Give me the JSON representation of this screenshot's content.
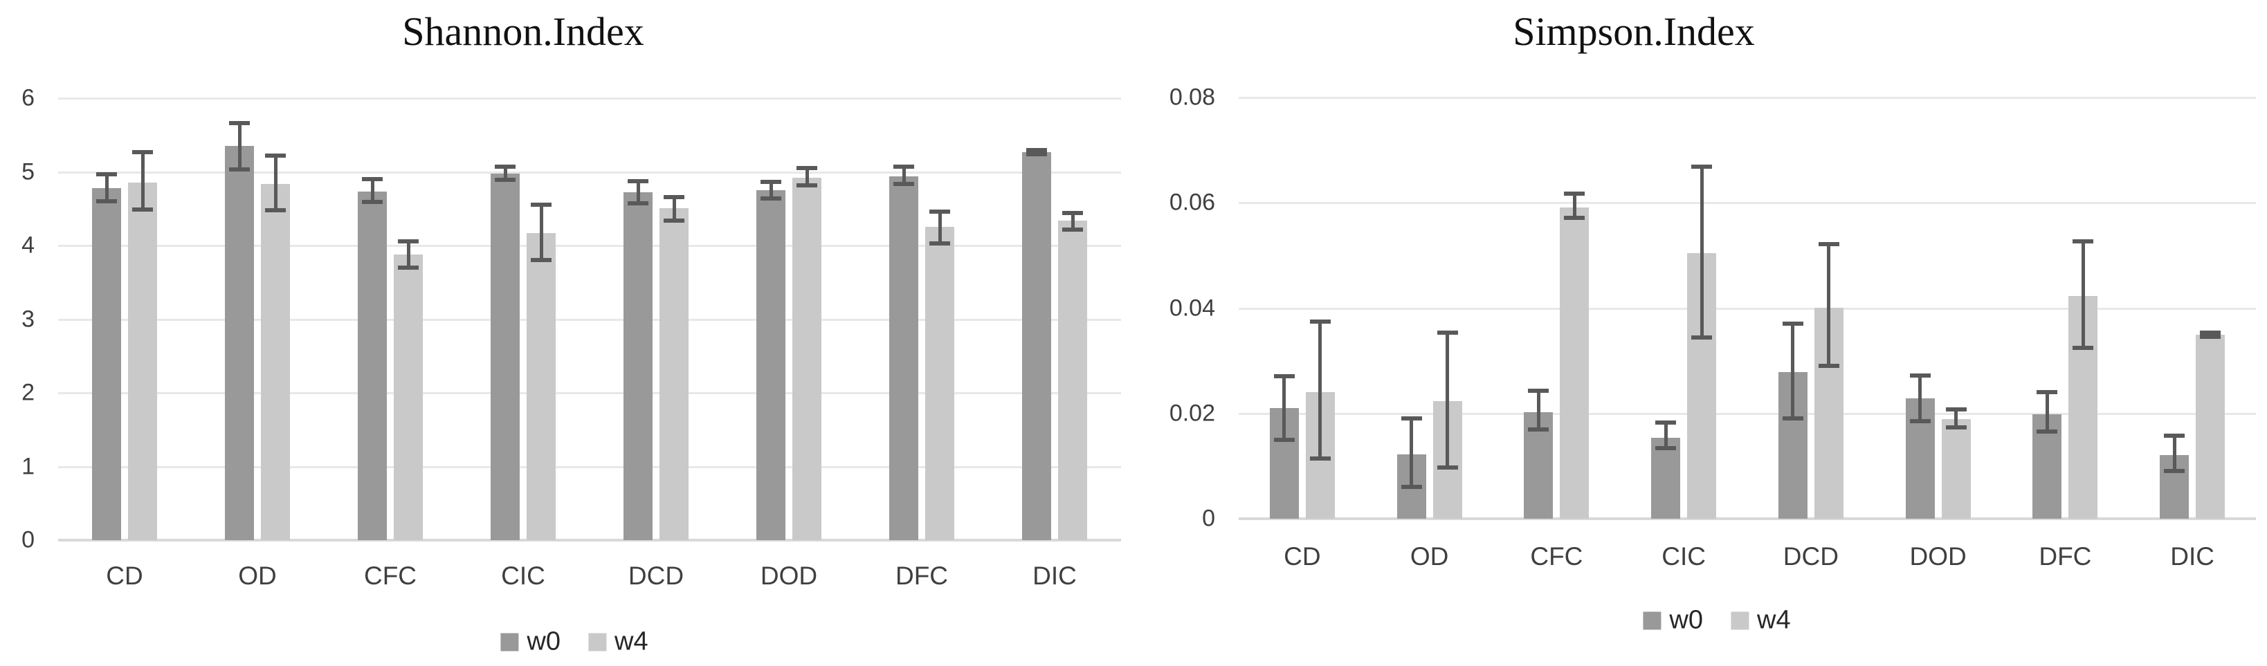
{
  "figure_background": "#ffffff",
  "colors": {
    "series_w0": "#999999",
    "series_w4": "#c9c9c9",
    "error_bar": "#595959",
    "gridline": "#e8e8e8",
    "axis_baseline": "#d9d9d9",
    "tick_label": "#3f3f3f",
    "title": "#111111"
  },
  "legend": {
    "items": [
      {
        "label": "w0"
      },
      {
        "label": "w4"
      }
    ]
  },
  "chart_data": [
    {
      "type": "bar",
      "title": "Shannon.Index",
      "xlabel": "",
      "ylabel": "",
      "categories": [
        "CD",
        "OD",
        "CFC",
        "CIC",
        "DCD",
        "DOD",
        "DFC",
        "DIC"
      ],
      "ylim": [
        0,
        6
      ],
      "yticks": [
        0,
        1,
        2,
        3,
        4,
        5,
        6
      ],
      "ytick_labels": [
        "0",
        "1",
        "2",
        "3",
        "4",
        "5",
        "6"
      ],
      "grid": true,
      "legend_position": "bottom",
      "error_bars": true,
      "series": [
        {
          "name": "w0",
          "color": "#999999",
          "values": [
            4.78,
            5.35,
            4.73,
            4.98,
            4.72,
            4.75,
            4.94,
            5.27
          ],
          "error_low": [
            4.6,
            5.03,
            4.59,
            4.89,
            4.57,
            4.64,
            4.84,
            5.24
          ],
          "error_high": [
            4.97,
            5.66,
            4.9,
            5.07,
            4.87,
            4.86,
            5.07,
            5.3
          ]
        },
        {
          "name": "w4",
          "color": "#c9c9c9",
          "values": [
            4.85,
            4.84,
            3.88,
            4.17,
            4.51,
            4.92,
            4.25,
            4.34
          ],
          "error_low": [
            4.49,
            4.48,
            3.7,
            3.8,
            4.34,
            4.82,
            4.03,
            4.22
          ],
          "error_high": [
            5.27,
            5.22,
            4.06,
            4.55,
            4.66,
            5.05,
            4.46,
            4.44
          ]
        }
      ]
    },
    {
      "type": "bar",
      "title": "Simpson.Index",
      "xlabel": "",
      "ylabel": "",
      "categories": [
        "CD",
        "OD",
        "CFC",
        "CIC",
        "DCD",
        "DOD",
        "DFC",
        "DIC"
      ],
      "ylim": [
        0,
        0.08
      ],
      "yticks": [
        0,
        0.02,
        0.04,
        0.06,
        0.08
      ],
      "ytick_labels": [
        "0",
        "0.02",
        "0.04",
        "0.06",
        "0.08"
      ],
      "grid": true,
      "legend_position": "bottom",
      "error_bars": true,
      "series": [
        {
          "name": "w0",
          "color": "#999999",
          "values": [
            0.021,
            0.0122,
            0.0202,
            0.0154,
            0.0279,
            0.0229,
            0.0199,
            0.0121
          ],
          "error_low": [
            0.015,
            0.006,
            0.017,
            0.0134,
            0.019,
            0.0185,
            0.0165,
            0.009
          ],
          "error_high": [
            0.027,
            0.019,
            0.0243,
            0.0182,
            0.037,
            0.0272,
            0.024,
            0.0158
          ]
        },
        {
          "name": "w4",
          "color": "#c9c9c9",
          "values": [
            0.024,
            0.0223,
            0.0591,
            0.0505,
            0.0401,
            0.0189,
            0.0423,
            0.0349
          ],
          "error_low": [
            0.0114,
            0.0097,
            0.0571,
            0.0344,
            0.029,
            0.0174,
            0.0325,
            0.0345
          ],
          "error_high": [
            0.0374,
            0.0354,
            0.0617,
            0.0668,
            0.0521,
            0.0207,
            0.0527,
            0.0354
          ]
        }
      ]
    }
  ]
}
